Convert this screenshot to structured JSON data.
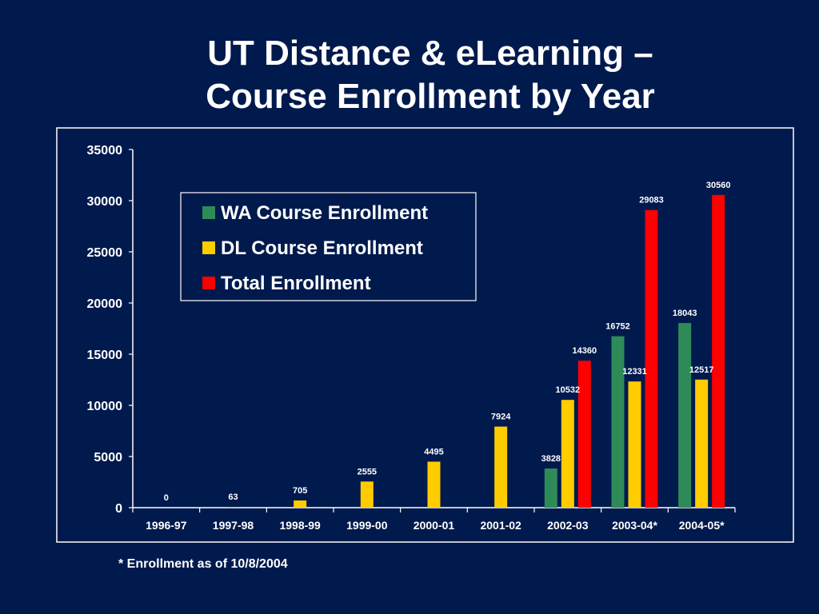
{
  "slide": {
    "title_line1": "UT Distance & eLearning –",
    "title_line2": "Course Enrollment by Year",
    "footnote": "*  Enrollment as of 10/8/2004"
  },
  "chart_data": {
    "type": "bar",
    "title": "",
    "xlabel": "",
    "ylabel": "",
    "categories": [
      "1996-97",
      "1997-98",
      "1998-99",
      "1999-00",
      "2000-01",
      "2001-02",
      "2002-03",
      "2003-04*",
      "2004-05*"
    ],
    "series": [
      {
        "name": "WA Course Enrollment",
        "color": "#2e8b57",
        "values": [
          null,
          null,
          null,
          null,
          null,
          null,
          3828,
          16752,
          18043
        ]
      },
      {
        "name": "DL Course Enrollment",
        "color": "#ffcc00",
        "values": [
          0,
          63,
          705,
          2555,
          4495,
          7924,
          10532,
          12331,
          12517
        ]
      },
      {
        "name": "Total Enrollment",
        "color": "#ff0000",
        "values": [
          null,
          null,
          null,
          null,
          null,
          null,
          14360,
          29083,
          30560
        ]
      }
    ],
    "ylim": [
      0,
      35000
    ],
    "yticks": [
      "0",
      "5000",
      "10000",
      "15000",
      "20000",
      "25000",
      "30000",
      "35000"
    ],
    "grid": false,
    "legend_position": "upper-left"
  }
}
